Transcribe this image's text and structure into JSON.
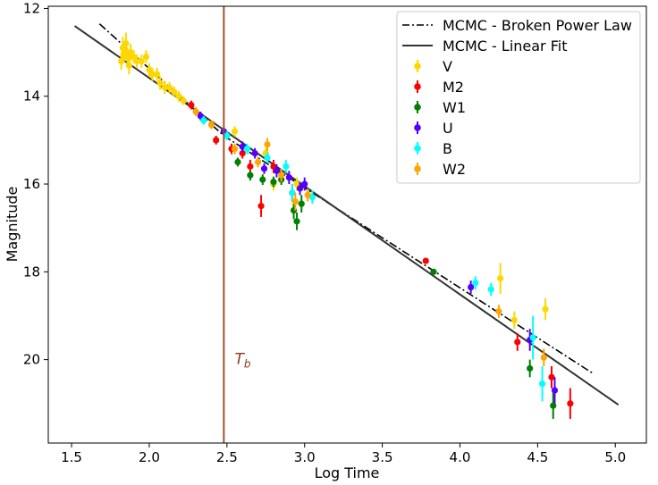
{
  "chart_data": {
    "type": "scatter",
    "xlabel": "Log Time",
    "ylabel": "Magnitude",
    "xlim": [
      1.35,
      5.2
    ],
    "ylim": [
      21.9,
      11.95
    ],
    "y_inverted": true,
    "x_ticks": [
      "1.5",
      "2.0",
      "2.5",
      "3.0",
      "3.5",
      "4.0",
      "4.5",
      "5.0"
    ],
    "y_ticks": [
      "12",
      "14",
      "16",
      "18",
      "20"
    ],
    "grid": false,
    "legend_position": "top-right",
    "legend": [
      {
        "label": "MCMC - Broken Power Law",
        "kind": "line-dashdot",
        "color": "#000000"
      },
      {
        "label": "MCMC - Linear Fit",
        "kind": "line",
        "color": "#333333"
      },
      {
        "label": "V",
        "kind": "marker",
        "color": "#ffd700"
      },
      {
        "label": "M2",
        "kind": "marker",
        "color": "#ff0000"
      },
      {
        "label": "W1",
        "kind": "marker",
        "color": "#008000"
      },
      {
        "label": "U",
        "kind": "marker",
        "color": "#5500ff"
      },
      {
        "label": "B",
        "kind": "marker",
        "color": "#00ffff"
      },
      {
        "label": "W2",
        "kind": "marker",
        "color": "#ffa500"
      }
    ],
    "annotation": {
      "text_base": "T",
      "text_sub": "b",
      "x": 2.55,
      "y": 20.1,
      "color": "#8b3a1a"
    },
    "vline": {
      "x": 2.48,
      "color": "#a0522d"
    },
    "fits": [
      {
        "name": "MCMC - Broken Power Law",
        "style": "dashdot",
        "color": "#000000",
        "points": [
          [
            1.68,
            12.35
          ],
          [
            2.48,
            14.9
          ],
          [
            4.85,
            20.3
          ]
        ]
      },
      {
        "name": "MCMC - Linear Fit",
        "style": "solid",
        "color": "#333333",
        "points": [
          [
            1.52,
            12.4
          ],
          [
            5.02,
            21.03
          ]
        ]
      }
    ],
    "series": [
      {
        "name": "V",
        "color": "#ffd700",
        "points": [
          [
            1.82,
            13.2,
            0.2
          ],
          [
            1.83,
            12.9,
            0.25
          ],
          [
            1.84,
            13.0,
            0.2
          ],
          [
            1.85,
            12.8,
            0.25
          ],
          [
            1.86,
            13.1,
            0.2
          ],
          [
            1.87,
            13.3,
            0.2
          ],
          [
            1.88,
            13.0,
            0.2
          ],
          [
            1.9,
            13.1,
            0.15
          ],
          [
            1.92,
            13.2,
            0.15
          ],
          [
            1.95,
            13.2,
            0.15
          ],
          [
            1.98,
            13.1,
            0.15
          ],
          [
            2.0,
            13.4,
            0.15
          ],
          [
            2.02,
            13.5,
            0.15
          ],
          [
            2.05,
            13.5,
            0.15
          ],
          [
            2.07,
            13.7,
            0.15
          ],
          [
            2.1,
            13.8,
            0.15
          ],
          [
            2.13,
            13.8,
            0.12
          ],
          [
            2.16,
            13.9,
            0.12
          ],
          [
            2.19,
            14.0,
            0.12
          ],
          [
            2.22,
            14.1,
            0.1
          ],
          [
            2.55,
            14.8,
            0.12
          ],
          [
            2.75,
            15.3,
            0.12
          ],
          [
            2.8,
            16.0,
            0.15
          ],
          [
            2.95,
            16.0,
            0.15
          ],
          [
            4.26,
            18.15,
            0.35
          ],
          [
            4.35,
            19.1,
            0.2
          ],
          [
            4.55,
            18.85,
            0.25
          ]
        ]
      },
      {
        "name": "M2",
        "color": "#ff0000",
        "points": [
          [
            2.27,
            14.2,
            0.1
          ],
          [
            2.43,
            15.0,
            0.1
          ],
          [
            2.53,
            15.2,
            0.12
          ],
          [
            2.6,
            15.3,
            0.12
          ],
          [
            2.65,
            15.6,
            0.15
          ],
          [
            2.72,
            16.5,
            0.25
          ],
          [
            2.8,
            15.6,
            0.15
          ],
          [
            2.92,
            16.2,
            0.2
          ],
          [
            3.78,
            17.75,
            0.05
          ],
          [
            4.37,
            19.6,
            0.2
          ],
          [
            4.59,
            20.4,
            0.25
          ],
          [
            4.71,
            21.0,
            0.35
          ]
        ]
      },
      {
        "name": "W1",
        "color": "#008000",
        "points": [
          [
            2.57,
            15.5,
            0.1
          ],
          [
            2.65,
            15.8,
            0.12
          ],
          [
            2.73,
            15.9,
            0.12
          ],
          [
            2.8,
            15.95,
            0.12
          ],
          [
            2.85,
            15.9,
            0.12
          ],
          [
            2.93,
            16.6,
            0.2
          ],
          [
            2.95,
            16.85,
            0.2
          ],
          [
            2.98,
            16.45,
            0.2
          ],
          [
            3.83,
            18.0,
            0.05
          ],
          [
            4.45,
            20.2,
            0.2
          ],
          [
            4.6,
            21.05,
            0.3
          ]
        ]
      },
      {
        "name": "U",
        "color": "#5500ff",
        "points": [
          [
            2.33,
            14.45,
            0.1
          ],
          [
            2.48,
            14.8,
            0.1
          ],
          [
            2.6,
            15.15,
            0.12
          ],
          [
            2.68,
            15.3,
            0.12
          ],
          [
            2.74,
            15.65,
            0.12
          ],
          [
            2.82,
            15.7,
            0.15
          ],
          [
            2.9,
            15.85,
            0.15
          ],
          [
            2.97,
            16.1,
            0.15
          ],
          [
            3.0,
            16.0,
            0.15
          ],
          [
            4.07,
            18.35,
            0.15
          ],
          [
            4.45,
            19.55,
            0.25
          ],
          [
            4.61,
            20.7,
            0.3
          ]
        ]
      },
      {
        "name": "B",
        "color": "#00ffff",
        "points": [
          [
            2.35,
            14.55,
            0.1
          ],
          [
            2.5,
            14.9,
            0.1
          ],
          [
            2.63,
            15.2,
            0.12
          ],
          [
            2.76,
            15.4,
            0.12
          ],
          [
            2.88,
            15.6,
            0.15
          ],
          [
            2.92,
            16.2,
            0.2
          ],
          [
            3.05,
            16.3,
            0.15
          ],
          [
            4.1,
            18.25,
            0.15
          ],
          [
            4.2,
            18.4,
            0.15
          ],
          [
            4.47,
            19.5,
            0.5
          ],
          [
            4.53,
            20.55,
            0.4
          ]
        ]
      },
      {
        "name": "W2",
        "color": "#ffa500",
        "points": [
          [
            2.3,
            14.35,
            0.1
          ],
          [
            2.4,
            14.65,
            0.1
          ],
          [
            2.55,
            15.2,
            0.12
          ],
          [
            2.7,
            15.5,
            0.12
          ],
          [
            2.76,
            15.1,
            0.15
          ],
          [
            2.85,
            15.8,
            0.15
          ],
          [
            2.94,
            16.4,
            0.2
          ],
          [
            3.02,
            16.25,
            0.15
          ],
          [
            4.25,
            18.9,
            0.15
          ],
          [
            4.54,
            19.95,
            0.2
          ]
        ]
      }
    ]
  }
}
